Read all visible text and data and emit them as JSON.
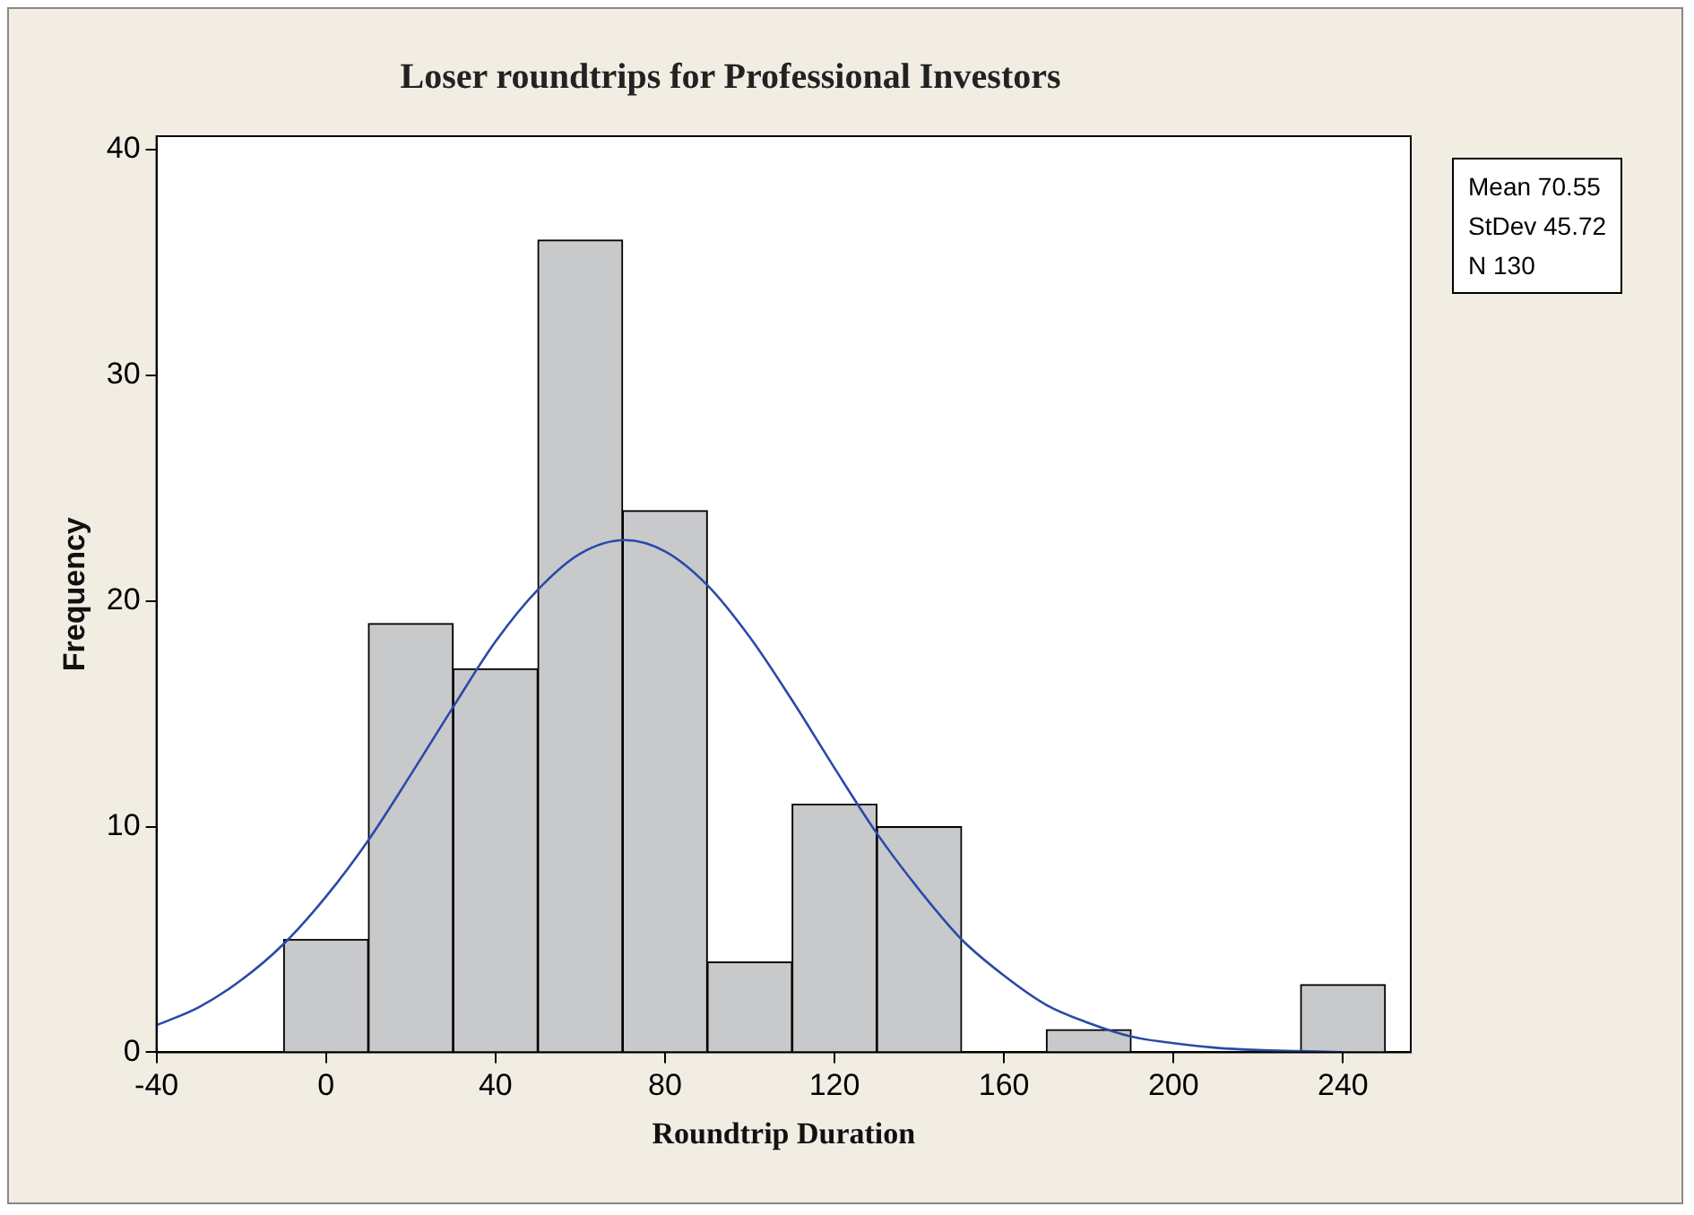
{
  "chart_data": {
    "type": "histogram",
    "title": "Loser roundtrips for Professional Investors",
    "xlabel": "Roundtrip Duration",
    "ylabel": "Frequency",
    "bins": [
      -10,
      10,
      30,
      50,
      70,
      90,
      110,
      130,
      150,
      170,
      190,
      210,
      230,
      250
    ],
    "values": [
      5,
      19,
      17,
      36,
      24,
      4,
      11,
      10,
      0,
      1,
      0,
      0,
      3
    ],
    "color": "#c8c9cb",
    "series": [
      {
        "type": "line",
        "color": "#2a4aa8",
        "x": [
          -40,
          -30,
          -20,
          -10,
          0,
          10,
          20,
          30,
          40,
          50,
          60,
          70.55,
          80,
          90,
          100,
          110,
          120,
          130,
          140,
          150,
          160,
          170,
          180,
          190,
          200,
          210,
          220,
          230,
          240
        ],
        "values": [
          1.2,
          2.0,
          3.2,
          4.8,
          6.9,
          9.4,
          12.3,
          15.3,
          18.2,
          20.5,
          22.1,
          22.7,
          22.2,
          20.7,
          18.4,
          15.6,
          12.6,
          9.7,
          7.2,
          5.0,
          3.4,
          2.1,
          1.3,
          0.7,
          0.4,
          0.2,
          0.1,
          0.05,
          0.0
        ]
      }
    ],
    "xlim": [
      -40,
      256
    ],
    "xticks": [
      -40,
      0,
      40,
      80,
      120,
      160,
      200,
      240
    ],
    "ylim": [
      0,
      40.6
    ],
    "yticks": [
      0,
      10,
      20,
      30,
      40
    ],
    "grid": false,
    "legend": false,
    "marker": "none",
    "line_style": "solid",
    "annotations": [
      "Mean 70.55",
      "StDev 45.72",
      "N 130"
    ]
  }
}
